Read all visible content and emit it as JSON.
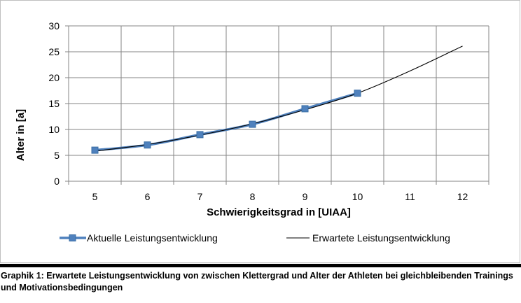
{
  "chart_data": {
    "type": "line",
    "xlabel": "Schwierigkeitsgrad in [UIAA]",
    "ylabel": "Alter in [a]",
    "xlim": [
      4.5,
      12.5
    ],
    "ylim": [
      0,
      30
    ],
    "x_ticks": [
      5,
      6,
      7,
      8,
      9,
      10,
      11,
      12
    ],
    "y_ticks": [
      0,
      5,
      10,
      15,
      20,
      25,
      30
    ],
    "grid": true,
    "legend_position": "bottom",
    "series": [
      {
        "name": "Aktuelle Leistungsentwicklung",
        "x": [
          5,
          6,
          7,
          8,
          9,
          10
        ],
        "y": [
          6,
          7,
          9,
          11,
          14,
          17
        ],
        "color": "#4f81bd",
        "marker": "square"
      },
      {
        "name": "Erwartete Leistungsentwicklung",
        "x": [
          5,
          6,
          7,
          8,
          9,
          10,
          11,
          12
        ],
        "y": [
          5.8,
          7.1,
          8.9,
          11.1,
          13.8,
          17.0,
          21.3,
          26.1
        ],
        "color": "#000000",
        "marker": "none"
      }
    ]
  },
  "caption": "Graphik 1: Erwartete Leistungsentwicklung von zwischen Klettergrad und Alter der Athleten bei gleichbleibenden Trainings und Motivationsbedingungen"
}
